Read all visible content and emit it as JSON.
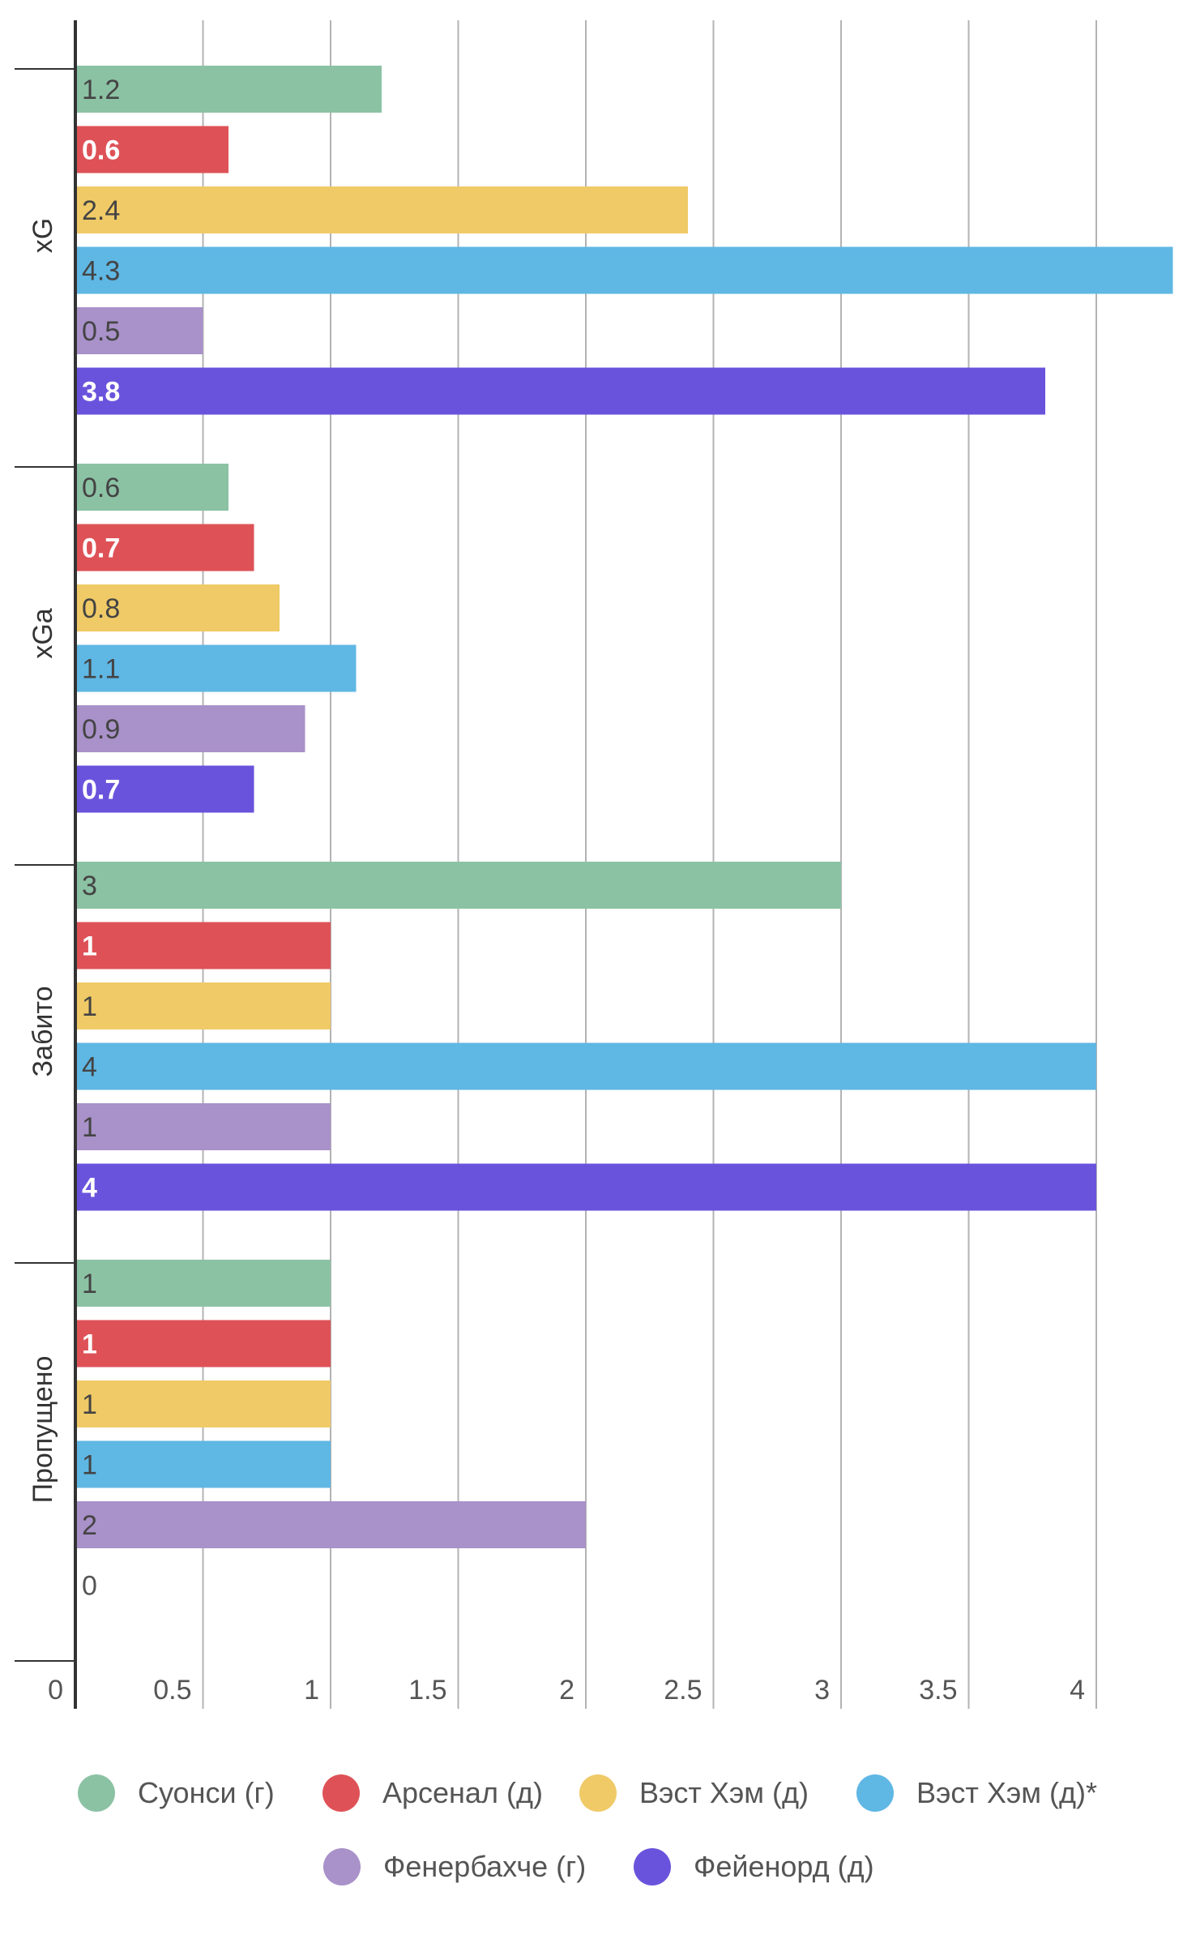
{
  "chart_data": {
    "type": "bar",
    "orientation": "horizontal",
    "title": "",
    "xlabel": "",
    "ylabel": "",
    "xlim": [
      0,
      4.3
    ],
    "x_ticks": [
      0,
      0.5,
      1,
      1.5,
      2,
      2.5,
      3,
      3.5,
      4
    ],
    "x_tick_labels": [
      "0",
      "0.5",
      "1",
      "1.5",
      "2",
      "2.5",
      "3",
      "3.5",
      "4"
    ],
    "grid": true,
    "legend_position": "bottom",
    "categories": [
      "xG",
      "xGa",
      "Забито",
      "Пропущено"
    ],
    "series": [
      {
        "name": "Суонси (г)",
        "color": "#8cc2a4",
        "label_color": "#444444",
        "values": [
          1.2,
          0.6,
          3,
          1
        ],
        "labels": [
          "1.2",
          "0.6",
          "3",
          "1"
        ]
      },
      {
        "name": "Арсенал (д)",
        "color": "#de5257",
        "label_color": "#ffffff",
        "values": [
          0.6,
          0.7,
          1,
          1
        ],
        "labels": [
          "0.6",
          "0.7",
          "1",
          "1"
        ]
      },
      {
        "name": "Вэст Хэм (д)",
        "color": "#efca67",
        "label_color": "#444444",
        "values": [
          2.4,
          0.8,
          1,
          1
        ],
        "labels": [
          "2.4",
          "0.8",
          "1",
          "1"
        ]
      },
      {
        "name": "Вэст Хэм (д)*",
        "color": "#5fb7e4",
        "label_color": "#444444",
        "values": [
          4.3,
          1.1,
          4,
          1
        ],
        "labels": [
          "4.3",
          "1.1",
          "4",
          "1"
        ]
      },
      {
        "name": "Фенербахче (г)",
        "color": "#a991c9",
        "label_color": "#444444",
        "values": [
          0.5,
          0.9,
          1,
          2
        ],
        "labels": [
          "0.5",
          "0.9",
          "1",
          "2"
        ]
      },
      {
        "name": "Фейенорд (д)",
        "color": "#6a53dc",
        "label_color": "#ffffff",
        "values": [
          3.8,
          0.7,
          4,
          0
        ],
        "labels": [
          "3.8",
          "0.7",
          "4",
          "0"
        ]
      }
    ]
  }
}
